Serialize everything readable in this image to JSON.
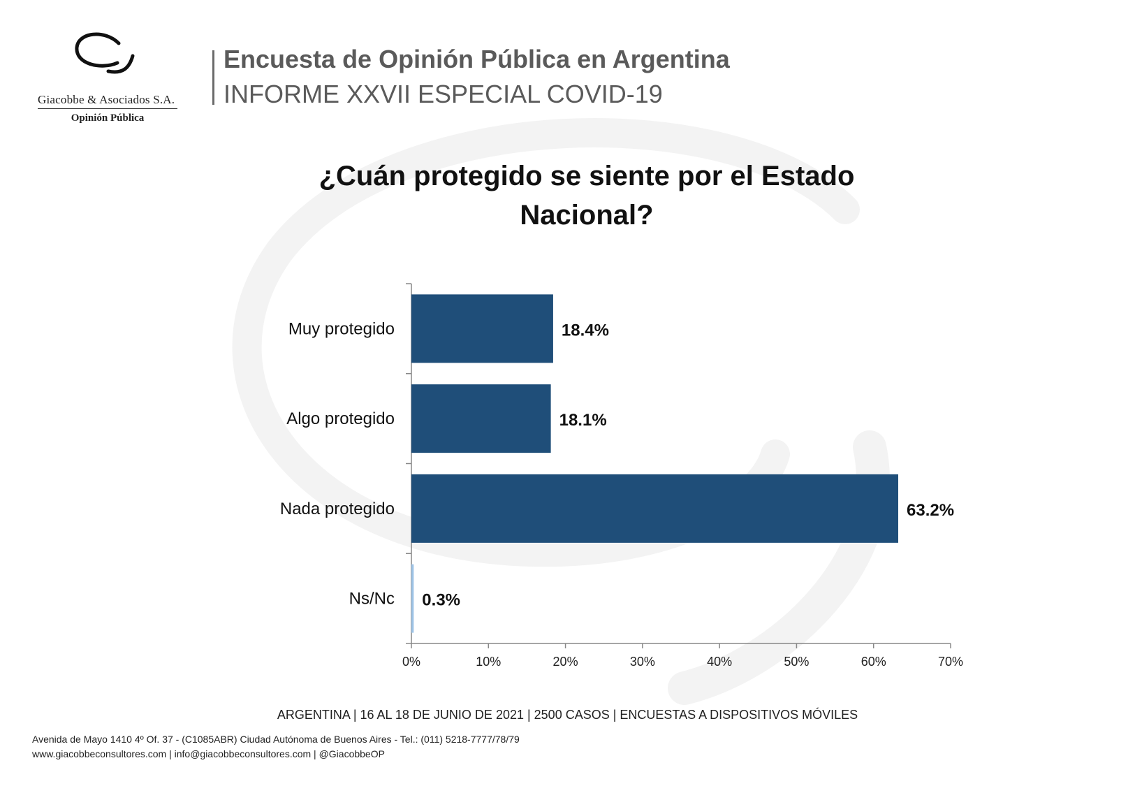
{
  "brand": {
    "name": "Giacobbe & Asociados S.A.",
    "tagline": "Opinión Pública"
  },
  "header": {
    "title": "Encuesta de Opinión Pública en Argentina",
    "subtitle": "INFORME XXVII ESPECIAL COVID-19"
  },
  "question": "¿Cuán protegido se siente por el Estado Nacional?",
  "chart_data": {
    "type": "bar",
    "orientation": "horizontal",
    "categories": [
      "Muy protegido",
      "Algo protegido",
      "Nada protegido",
      "Ns/Nc"
    ],
    "values": [
      18.4,
      18.1,
      63.2,
      0.3
    ],
    "value_labels": [
      "18.4%",
      "18.1%",
      "63.2%",
      "0.3%"
    ],
    "xlim": [
      0,
      70
    ],
    "x_ticks": [
      0,
      10,
      20,
      30,
      40,
      50,
      60,
      70
    ],
    "x_tick_labels": [
      "0%",
      "10%",
      "20%",
      "30%",
      "40%",
      "50%",
      "60%",
      "70%"
    ],
    "bar_color": "#1f4e79",
    "highlight_color": "#9dc3e6",
    "grid": false
  },
  "footer": {
    "survey_info": "ARGENTINA | 16 AL 18 DE JUNIO DE 2021 | 2500 CASOS | ENCUESTAS A DISPOSITIVOS MÓVILES",
    "address": "Avenida de Mayo 1410 4º Of. 37 - (C1085ABR) Ciudad Autónoma de Buenos Aires - Tel.: (011) 5218-7777/78/79",
    "contact": "www.giacobbeconsultores.com | info@giacobbeconsultores.com | @GiacobbeOP"
  }
}
